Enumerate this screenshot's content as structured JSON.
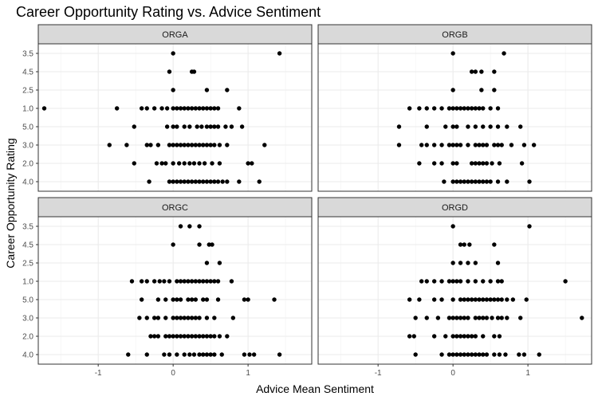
{
  "chart_data": {
    "type": "scatter",
    "title": "Career Opportunity Rating vs. Advice Sentiment",
    "xlabel": "Advice Mean Sentiment",
    "ylabel": "Career Opportunity Rating",
    "categories": [
      "3.5",
      "4.5",
      "2.5",
      "1.0",
      "5.0",
      "3.0",
      "2.0",
      "4.0"
    ],
    "x_ticks": [
      -1,
      0,
      1
    ],
    "x_tick_labels": [
      "-1",
      "0",
      "1"
    ],
    "xlim": [
      -1.8,
      1.85
    ],
    "grid": true,
    "facets": [
      {
        "name": "ORGA",
        "points": {
          "3.5": [
            0.0,
            1.42
          ],
          "4.5": [
            -0.05,
            0.25,
            0.28
          ],
          "2.5": [
            0.0,
            0.45,
            0.72
          ],
          "1.0": [
            -1.72,
            -0.75,
            -0.42,
            -0.35,
            -0.25,
            -0.15,
            -0.08,
            0.0,
            0.05,
            0.1,
            0.15,
            0.2,
            0.25,
            0.3,
            0.35,
            0.4,
            0.45,
            0.5,
            0.55,
            0.6,
            0.88
          ],
          "5.0": [
            -0.52,
            -0.08,
            0.0,
            0.05,
            0.15,
            0.22,
            0.32,
            0.38,
            0.45,
            0.5,
            0.55,
            0.6,
            0.7,
            0.78,
            0.92
          ],
          "3.0": [
            -0.85,
            -0.62,
            -0.35,
            -0.3,
            -0.2,
            -0.05,
            0.0,
            0.05,
            0.1,
            0.15,
            0.2,
            0.25,
            0.3,
            0.35,
            0.4,
            0.45,
            0.5,
            0.55,
            0.62,
            0.72,
            1.22
          ],
          "2.0": [
            -0.52,
            -0.22,
            -0.15,
            -0.1,
            0.0,
            0.08,
            0.15,
            0.22,
            0.28,
            0.35,
            0.42,
            0.52,
            0.62,
            1.0,
            1.05
          ],
          "4.0": [
            -0.32,
            -0.05,
            0.0,
            0.05,
            0.1,
            0.15,
            0.2,
            0.25,
            0.3,
            0.35,
            0.4,
            0.45,
            0.5,
            0.55,
            0.6,
            0.66,
            0.72,
            0.88,
            1.15
          ]
        }
      },
      {
        "name": "ORGB",
        "points": {
          "3.5": [
            0.0,
            0.68
          ],
          "4.5": [
            0.25,
            0.3,
            0.38,
            0.55
          ],
          "2.5": [
            0.0,
            0.38,
            0.55
          ],
          "1.0": [
            -0.58,
            -0.45,
            -0.35,
            -0.25,
            -0.15,
            -0.05,
            0.0,
            0.05,
            0.1,
            0.15,
            0.2,
            0.25,
            0.3,
            0.35,
            0.4,
            0.5,
            0.6
          ],
          "5.0": [
            -0.72,
            -0.35,
            -0.1,
            0.0,
            0.05,
            0.2,
            0.3,
            0.4,
            0.5,
            0.6,
            0.72,
            0.9
          ],
          "3.0": [
            -0.72,
            -0.42,
            -0.35,
            -0.25,
            -0.15,
            -0.05,
            0.0,
            0.05,
            0.1,
            0.2,
            0.3,
            0.35,
            0.4,
            0.45,
            0.55,
            0.6,
            0.65,
            0.78,
            0.95,
            1.08
          ],
          "2.0": [
            -0.45,
            -0.25,
            -0.15,
            0.0,
            0.05,
            0.25,
            0.3,
            0.35,
            0.4,
            0.45,
            0.52,
            0.62,
            0.92
          ],
          "4.0": [
            -0.12,
            0.0,
            0.05,
            0.1,
            0.15,
            0.2,
            0.25,
            0.3,
            0.35,
            0.4,
            0.45,
            0.5,
            0.6,
            0.72,
            1.02
          ]
        }
      },
      {
        "name": "ORGC",
        "points": {
          "3.5": [
            0.1,
            0.22,
            0.35
          ],
          "4.5": [
            0.0,
            0.35,
            0.48,
            0.52
          ],
          "2.5": [
            0.45,
            0.62
          ],
          "1.0": [
            -0.55,
            -0.42,
            -0.35,
            -0.25,
            -0.18,
            -0.12,
            -0.05,
            0.05,
            0.1,
            0.15,
            0.2,
            0.25,
            0.3,
            0.35,
            0.4,
            0.45,
            0.5,
            0.55,
            0.6,
            0.78
          ],
          "5.0": [
            -0.42,
            -0.2,
            -0.1,
            0.0,
            0.05,
            0.1,
            0.2,
            0.25,
            0.3,
            0.4,
            0.45,
            0.6,
            0.95,
            1.0,
            1.35
          ],
          "3.0": [
            -0.45,
            -0.35,
            -0.25,
            -0.2,
            -0.1,
            0.0,
            0.05,
            0.1,
            0.15,
            0.2,
            0.25,
            0.3,
            0.35,
            0.45,
            0.55,
            0.8
          ],
          "2.0": [
            -0.3,
            -0.25,
            -0.2,
            -0.1,
            -0.05,
            0.0,
            0.05,
            0.1,
            0.15,
            0.2,
            0.25,
            0.3,
            0.35,
            0.4,
            0.45,
            0.5,
            0.55,
            0.62,
            0.72
          ],
          "4.0": [
            -0.6,
            -0.35,
            -0.12,
            -0.05,
            0.05,
            0.15,
            0.22,
            0.28,
            0.35,
            0.4,
            0.45,
            0.5,
            0.55,
            0.65,
            0.95,
            1.02,
            1.08,
            1.42
          ]
        }
      },
      {
        "name": "ORGD",
        "points": {
          "3.5": [
            0.0,
            1.02
          ],
          "4.5": [
            0.1,
            0.15,
            0.22,
            0.55
          ],
          "2.5": [
            0.0,
            0.1,
            0.2,
            0.3,
            0.6
          ],
          "1.0": [
            -0.42,
            -0.35,
            -0.25,
            -0.15,
            -0.05,
            0.0,
            0.05,
            0.1,
            0.2,
            0.3,
            0.4,
            0.5,
            0.6,
            0.65,
            1.5
          ],
          "5.0": [
            -0.58,
            -0.45,
            -0.25,
            -0.15,
            0.0,
            0.1,
            0.15,
            0.2,
            0.25,
            0.3,
            0.35,
            0.4,
            0.45,
            0.5,
            0.55,
            0.6,
            0.65,
            0.72,
            0.8,
            0.98
          ],
          "3.0": [
            -0.5,
            -0.35,
            -0.2,
            -0.05,
            0.0,
            0.05,
            0.1,
            0.15,
            0.2,
            0.3,
            0.35,
            0.4,
            0.45,
            0.52,
            0.6,
            0.65,
            0.72,
            0.9,
            1.72
          ],
          "2.0": [
            -0.58,
            -0.52,
            -0.25,
            -0.1,
            0.0,
            0.05,
            0.1,
            0.15,
            0.2,
            0.25,
            0.3,
            0.4,
            0.55,
            0.62
          ],
          "4.0": [
            -0.5,
            -0.15,
            -0.05,
            0.0,
            0.05,
            0.1,
            0.15,
            0.2,
            0.25,
            0.3,
            0.35,
            0.4,
            0.45,
            0.55,
            0.62,
            0.7,
            0.88,
            0.95,
            1.15
          ]
        }
      }
    ]
  }
}
